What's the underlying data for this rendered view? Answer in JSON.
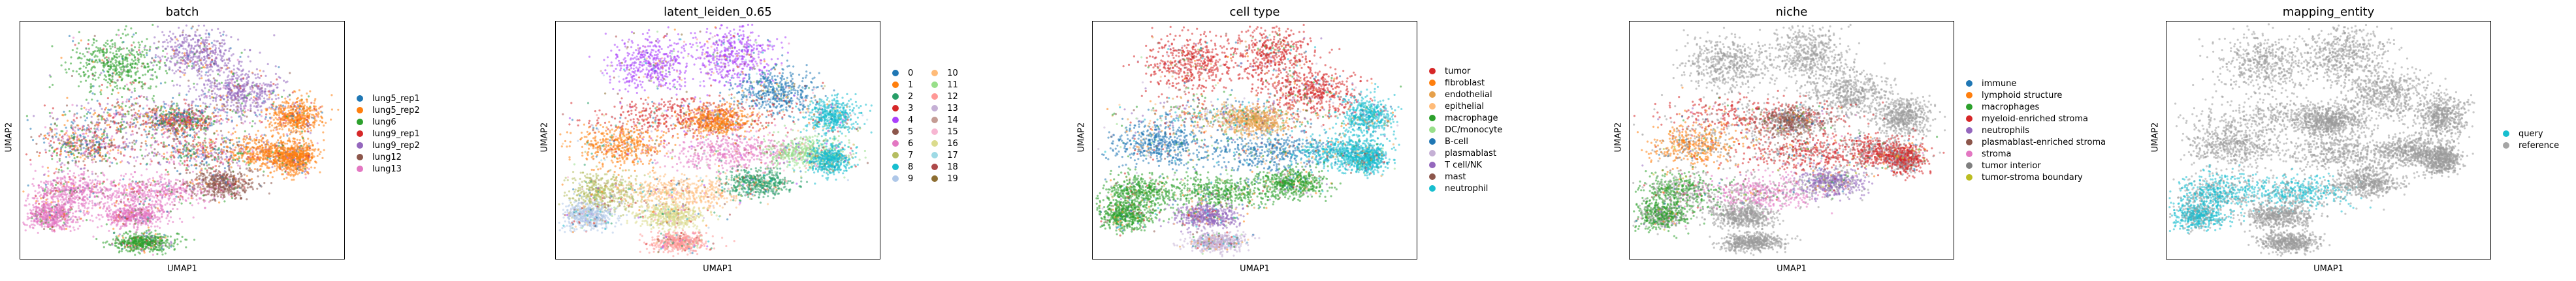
{
  "chart_data": [
    {
      "type": "scatter",
      "title": "batch",
      "xlabel": "UMAP1",
      "ylabel": "UMAP2",
      "legend_placement": "right",
      "grid": false,
      "series": [
        {
          "name": "lung5_rep1",
          "color": "#1f77b4"
        },
        {
          "name": "lung5_rep2",
          "color": "#ff7f0e"
        },
        {
          "name": "lung6",
          "color": "#2ca02c"
        },
        {
          "name": "lung9_rep1",
          "color": "#d62728"
        },
        {
          "name": "lung9_rep2",
          "color": "#9467bd"
        },
        {
          "name": "lung12",
          "color": "#8c564b"
        },
        {
          "name": "lung13",
          "color": "#e377c2"
        }
      ]
    },
    {
      "type": "scatter",
      "title": "latent_leiden_0.65",
      "xlabel": "UMAP1",
      "ylabel": "UMAP2",
      "legend_placement": "right",
      "grid": false,
      "series": [
        {
          "name": "0",
          "color": "#1f77b4"
        },
        {
          "name": "1",
          "color": "#ff7f0e"
        },
        {
          "name": "2",
          "color": "#279e68"
        },
        {
          "name": "3",
          "color": "#d62728"
        },
        {
          "name": "4",
          "color": "#aa40fc"
        },
        {
          "name": "5",
          "color": "#8c564b"
        },
        {
          "name": "6",
          "color": "#e377c2"
        },
        {
          "name": "7",
          "color": "#b5bd61"
        },
        {
          "name": "8",
          "color": "#17becf"
        },
        {
          "name": "9",
          "color": "#aec7e8"
        },
        {
          "name": "10",
          "color": "#ffbb78"
        },
        {
          "name": "11",
          "color": "#98df8a"
        },
        {
          "name": "12",
          "color": "#ff9896"
        },
        {
          "name": "13",
          "color": "#c5b0d5"
        },
        {
          "name": "14",
          "color": "#c49c94"
        },
        {
          "name": "15",
          "color": "#f7b6d2"
        },
        {
          "name": "16",
          "color": "#dbdb8d"
        },
        {
          "name": "17",
          "color": "#9edae5"
        },
        {
          "name": "18",
          "color": "#ad494a"
        },
        {
          "name": "19",
          "color": "#8c6d31"
        }
      ]
    },
    {
      "type": "scatter",
      "title": "cell type",
      "xlabel": "UMAP1",
      "ylabel": "UMAP2",
      "legend_placement": "right",
      "grid": false,
      "series": [
        {
          "name": "tumor",
          "color": "#d62728"
        },
        {
          "name": "fibroblast",
          "color": "#ff7f0e"
        },
        {
          "name": "endothelial",
          "color": "#e6a04a"
        },
        {
          "name": "epithelial",
          "color": "#ffbb78"
        },
        {
          "name": "macrophage",
          "color": "#2ca02c"
        },
        {
          "name": "DC/monocyte",
          "color": "#98df8a"
        },
        {
          "name": "B-cell",
          "color": "#1f77b4"
        },
        {
          "name": "plasmablast",
          "color": "#c5b0d5"
        },
        {
          "name": "T cell/NK",
          "color": "#9467bd"
        },
        {
          "name": "mast",
          "color": "#8c564b"
        },
        {
          "name": "neutrophil",
          "color": "#17becf"
        }
      ]
    },
    {
      "type": "scatter",
      "title": "niche",
      "xlabel": "UMAP1",
      "ylabel": "UMAP2",
      "legend_placement": "right",
      "grid": false,
      "series": [
        {
          "name": "immune",
          "color": "#1f77b4"
        },
        {
          "name": "lymphoid structure",
          "color": "#ff7f0e"
        },
        {
          "name": "macrophages",
          "color": "#2ca02c"
        },
        {
          "name": "myeloid-enriched stroma",
          "color": "#d62728"
        },
        {
          "name": "neutrophils",
          "color": "#9467bd"
        },
        {
          "name": "plasmablast-enriched stroma",
          "color": "#8c564b"
        },
        {
          "name": "stroma",
          "color": "#e377c2"
        },
        {
          "name": "tumor interior",
          "color": "#7f7f7f"
        },
        {
          "name": "tumor-stroma boundary",
          "color": "#bcbd22"
        }
      ]
    },
    {
      "type": "scatter",
      "title": "mapping_entity",
      "xlabel": "UMAP1",
      "ylabel": "UMAP2",
      "legend_placement": "right",
      "grid": false,
      "series": [
        {
          "name": "query",
          "color": "#17becf"
        },
        {
          "name": "reference",
          "color": "#a5a5a5"
        }
      ]
    }
  ]
}
